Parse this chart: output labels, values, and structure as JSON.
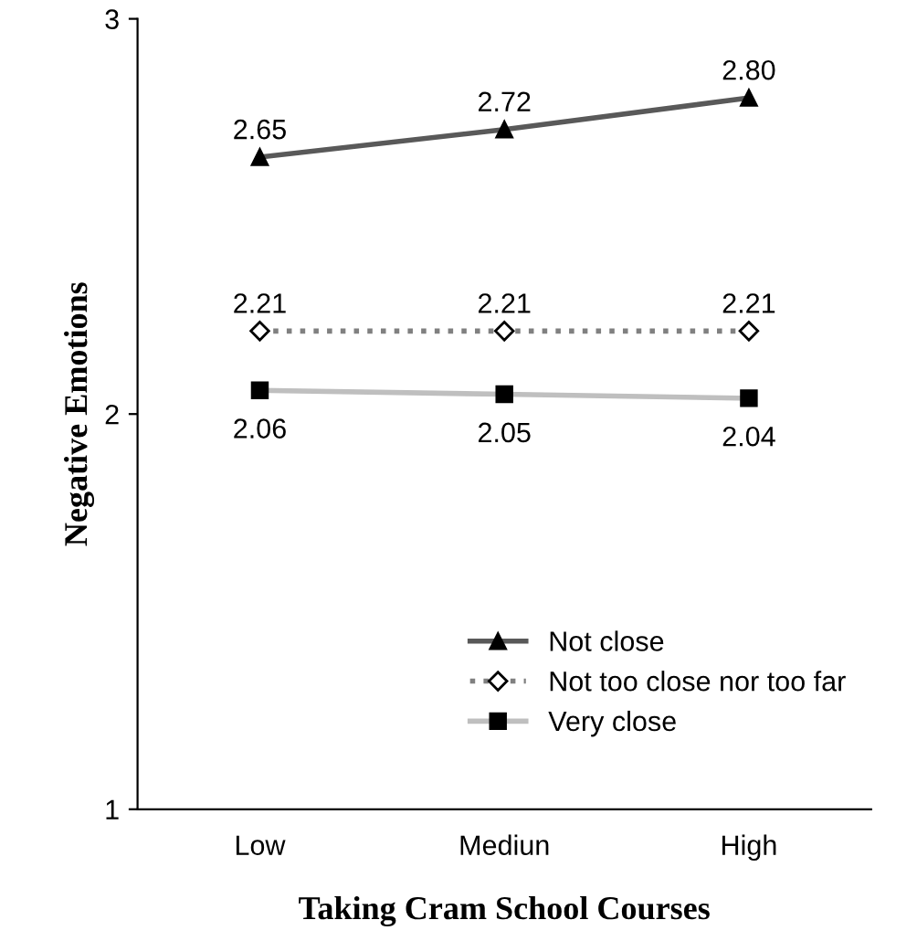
{
  "chart_data": {
    "type": "line",
    "xlabel": "Taking Cram School Courses",
    "ylabel": "Negative Emotions",
    "categories": [
      "Low",
      "Mediun",
      "High"
    ],
    "series": [
      {
        "name": "Not close",
        "color": "#595959",
        "values": [
          2.65,
          2.72,
          2.8
        ],
        "value_labels": [
          "2.65",
          "2.72",
          "2.80"
        ],
        "marker": "triangle",
        "line_style": "solid"
      },
      {
        "name": "Not too close nor too far",
        "color": "#808080",
        "values": [
          2.21,
          2.21,
          2.21
        ],
        "value_labels": [
          "2.21",
          "2.21",
          "2.21"
        ],
        "marker": "diamond",
        "line_style": "dotted"
      },
      {
        "name": "Very close",
        "color": "#bfbfbf",
        "values": [
          2.06,
          2.05,
          2.04
        ],
        "value_labels": [
          "2.06",
          "2.05",
          "2.04"
        ],
        "marker": "square",
        "line_style": "solid"
      }
    ],
    "ylim": [
      1,
      3
    ],
    "yticks": [
      1,
      2,
      3
    ],
    "grid": false,
    "legend": "bottom right"
  }
}
